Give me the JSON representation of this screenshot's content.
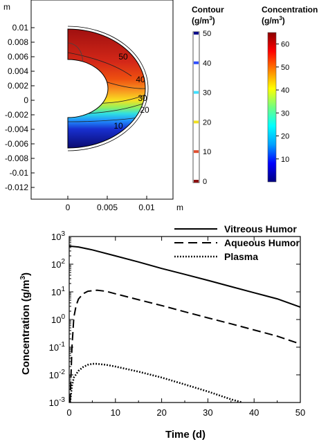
{
  "chart_data": [
    {
      "type": "heatmap",
      "title": "",
      "xlabel": "m",
      "ylabel": "m",
      "xlim": [
        -0.0055,
        0.0145
      ],
      "ylim": [
        -0.0125,
        0.0125
      ],
      "x_ticks": [
        "0",
        "0.005",
        "0.01"
      ],
      "y_ticks": [
        "0.01",
        "0.008",
        "0.006",
        "0.004",
        "0.002",
        "0",
        "-0.002",
        "-0.004",
        "-0.006",
        "-0.008",
        "-0.01",
        "-0.012"
      ],
      "contour_labels": [
        "50",
        "40",
        "30",
        "20",
        "10"
      ],
      "contour_legend": {
        "title": "Contour",
        "unit": "(g/m",
        "unit_exp": "3",
        "unit_close": ")",
        "ticks": [
          "50",
          "40",
          "30",
          "20",
          "10",
          "0"
        ],
        "levels": [
          {
            "value": 50,
            "color": "#0d0d8c"
          },
          {
            "value": 40,
            "color": "#3050ff"
          },
          {
            "value": 30,
            "color": "#40e0ff"
          },
          {
            "value": 20,
            "color": "#f0e020"
          },
          {
            "value": 10,
            "color": "#e05030"
          },
          {
            "value": 0,
            "color": "#8b0f0f"
          }
        ]
      },
      "color_legend": {
        "title": "Concentration",
        "unit": "(g/m",
        "unit_exp": "3",
        "unit_close": ")",
        "min": 0,
        "max": 65,
        "ticks": [
          "60",
          "50",
          "40",
          "30",
          "20",
          "10"
        ],
        "colormap": [
          "#00007f",
          "#0000ff",
          "#00a0ff",
          "#00ffff",
          "#70ff80",
          "#ffff00",
          "#ff8000",
          "#ff0000",
          "#8b0000"
        ]
      }
    },
    {
      "type": "line",
      "title": "",
      "xlabel": "Time (d)",
      "ylabel": "Concentration (g/m",
      "ylabel_exp": "3",
      "ylabel_close": ")",
      "xlim": [
        0,
        50
      ],
      "ylim_log10": [
        -3,
        3
      ],
      "yscale": "log",
      "x_ticks": [
        "0",
        "10",
        "20",
        "30",
        "40",
        "50"
      ],
      "y_ticks": [
        {
          "base": "10",
          "exp": "3"
        },
        {
          "base": "10",
          "exp": "2"
        },
        {
          "base": "10",
          "exp": "1"
        },
        {
          "base": "10",
          "exp": "0"
        },
        {
          "base": "10",
          "exp": "-1"
        },
        {
          "base": "10",
          "exp": "-2"
        },
        {
          "base": "10",
          "exp": "-3"
        }
      ],
      "legend_position": "top-right",
      "series": [
        {
          "name": "Vitreous Humor",
          "style": "solid",
          "x": [
            0,
            2,
            5,
            10,
            15,
            20,
            25,
            30,
            35,
            40,
            45,
            50
          ],
          "y": [
            450,
            420,
            330,
            200,
            120,
            70,
            43,
            26,
            15.5,
            9.3,
            5.6,
            2.8
          ]
        },
        {
          "name": "Aqueous Humor",
          "style": "dashed",
          "x": [
            0.2,
            0.6,
            1,
            1.5,
            2,
            3,
            4,
            6,
            8,
            10,
            15,
            20,
            25,
            30,
            35,
            40,
            45,
            50
          ],
          "y": [
            0.001,
            0.1,
            1.2,
            3.2,
            5.5,
            8.5,
            10.5,
            11.5,
            10.5,
            8.5,
            5.2,
            3.2,
            1.9,
            1.15,
            0.7,
            0.42,
            0.25,
            0.13
          ]
        },
        {
          "name": "Plasma",
          "style": "dotted",
          "x": [
            0.2,
            0.6,
            1,
            2,
            3,
            4,
            5,
            6,
            8,
            10,
            15,
            20,
            25,
            30,
            35,
            37.5
          ],
          "y": [
            0.001,
            0.004,
            0.008,
            0.014,
            0.019,
            0.023,
            0.025,
            0.025,
            0.023,
            0.02,
            0.013,
            0.008,
            0.0045,
            0.0025,
            0.0013,
            0.001
          ]
        }
      ]
    }
  ]
}
